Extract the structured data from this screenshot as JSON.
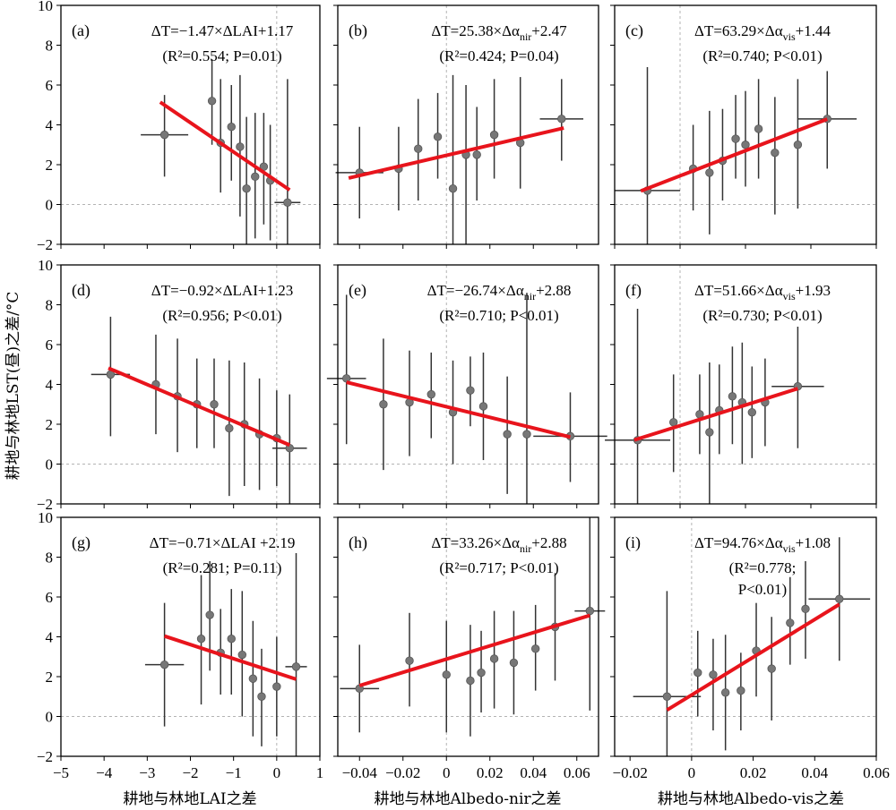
{
  "axes": {
    "ylabel": "耕地与林地LST(昼)之差/°C",
    "xlabels": [
      "耕地与林地LAI之差",
      "耕地与林地Albedo-nir之差",
      "耕地与林地Albedo-vis之差"
    ]
  },
  "chart_data": [
    {
      "type": "scatter",
      "label": "(a)",
      "eq": "ΔT=−1.47×ΔLAI+1.17",
      "eq_stats": "(R²=0.554; P=0.01)",
      "xlim": [
        -5,
        1
      ],
      "ylim": [
        -2,
        10
      ],
      "fit": [
        -2.7,
        0.3
      ],
      "slope": -1.47,
      "intercept": 1.17,
      "points": [
        {
          "x": -2.6,
          "y": 3.5,
          "xerr": 0.55,
          "ylo": 1.4,
          "yhi": 5.5
        },
        {
          "x": -1.5,
          "y": 5.2,
          "xerr": 0,
          "ylo": 3.0,
          "yhi": 7.3
        },
        {
          "x": -1.3,
          "y": 3.1,
          "xerr": 0,
          "ylo": 0.6,
          "yhi": 6.3
        },
        {
          "x": -1.05,
          "y": 3.9,
          "xerr": 0,
          "ylo": 1.2,
          "yhi": 6.0
        },
        {
          "x": -0.85,
          "y": 2.9,
          "xerr": 0,
          "ylo": -0.6,
          "yhi": 6.5
        },
        {
          "x": -0.7,
          "y": 0.8,
          "xerr": 0,
          "ylo": -2.0,
          "yhi": 4.4
        },
        {
          "x": -0.5,
          "y": 1.4,
          "xerr": 0,
          "ylo": -1.7,
          "yhi": 4.6
        },
        {
          "x": -0.3,
          "y": 1.9,
          "xerr": 0,
          "ylo": -1.0,
          "yhi": 4.6
        },
        {
          "x": -0.15,
          "y": 1.2,
          "xerr": 0,
          "ylo": -1.8,
          "yhi": 4.0
        },
        {
          "x": 0.25,
          "y": 0.1,
          "xerr": 0.3,
          "ylo": -2.0,
          "yhi": 6.3
        }
      ]
    },
    {
      "type": "scatter",
      "label": "(b)",
      "eq": "ΔT=25.38×Δα_nir+2.47",
      "eq_stats": "(R²=0.424; P=0.04)",
      "xlim": [
        -0.05,
        0.07
      ],
      "ylim": [
        -2,
        10
      ],
      "fit": [
        -0.045,
        0.054
      ],
      "slope": 25.38,
      "intercept": 2.47,
      "points": [
        {
          "x": -0.04,
          "y": 1.6,
          "xerr": 0.011,
          "ylo": -0.7,
          "yhi": 3.9
        },
        {
          "x": -0.022,
          "y": 1.8,
          "xerr": 0,
          "ylo": -0.3,
          "yhi": 3.9
        },
        {
          "x": -0.013,
          "y": 2.8,
          "xerr": 0,
          "ylo": 0.2,
          "yhi": 5.3
        },
        {
          "x": -0.004,
          "y": 3.4,
          "xerr": 0,
          "ylo": 1.3,
          "yhi": 5.6
        },
        {
          "x": 0.003,
          "y": 0.8,
          "xerr": 0,
          "ylo": -2.0,
          "yhi": 6.5
        },
        {
          "x": 0.009,
          "y": 2.5,
          "xerr": 0,
          "ylo": -2.0,
          "yhi": 6.0
        },
        {
          "x": 0.014,
          "y": 2.5,
          "xerr": 0,
          "ylo": 0.2,
          "yhi": 4.9
        },
        {
          "x": 0.022,
          "y": 3.5,
          "xerr": 0,
          "ylo": 1.3,
          "yhi": 6.3
        },
        {
          "x": 0.034,
          "y": 3.1,
          "xerr": 0,
          "ylo": 0.8,
          "yhi": 6.4
        },
        {
          "x": 0.053,
          "y": 4.3,
          "xerr": 0.01,
          "ylo": 2.2,
          "yhi": 6.3
        }
      ]
    },
    {
      "type": "scatter",
      "label": "(c)",
      "eq": "ΔT=63.29×Δα_vis+1.44",
      "eq_stats": "(R²=0.740; P<0.01)",
      "xlim": [
        -0.02,
        0.06
      ],
      "ylim": [
        -2,
        10
      ],
      "fit": [
        -0.012,
        0.045
      ],
      "slope": 63.29,
      "intercept": 1.44,
      "points": [
        {
          "x": -0.01,
          "y": 0.7,
          "xerr": 0.01,
          "ylo": -2.0,
          "yhi": 6.9
        },
        {
          "x": 0.004,
          "y": 1.8,
          "xerr": 0,
          "ylo": -0.3,
          "yhi": 4.0
        },
        {
          "x": 0.009,
          "y": 1.6,
          "xerr": 0,
          "ylo": -1.5,
          "yhi": 4.7
        },
        {
          "x": 0.013,
          "y": 2.2,
          "xerr": 0,
          "ylo": 0.2,
          "yhi": 4.8
        },
        {
          "x": 0.017,
          "y": 3.3,
          "xerr": 0,
          "ylo": 1.3,
          "yhi": 5.5
        },
        {
          "x": 0.02,
          "y": 3.0,
          "xerr": 0,
          "ylo": 0.9,
          "yhi": 5.7
        },
        {
          "x": 0.024,
          "y": 3.8,
          "xerr": 0,
          "ylo": 1.3,
          "yhi": 6.3
        },
        {
          "x": 0.029,
          "y": 2.6,
          "xerr": 0,
          "ylo": -0.5,
          "yhi": 5.4
        },
        {
          "x": 0.036,
          "y": 3.0,
          "xerr": 0,
          "ylo": -0.2,
          "yhi": 6.3
        },
        {
          "x": 0.045,
          "y": 4.3,
          "xerr": 0.009,
          "ylo": 1.8,
          "yhi": 6.7
        }
      ]
    },
    {
      "type": "scatter",
      "label": "(d)",
      "eq": "ΔT=−0.92×ΔLAI+1.23",
      "eq_stats": "(R²=0.956; P<0.01)",
      "xlim": [
        -5,
        1
      ],
      "ylim": [
        -2,
        10
      ],
      "fit": [
        -3.9,
        0.3
      ],
      "slope": -0.92,
      "intercept": 1.23,
      "points": [
        {
          "x": -3.85,
          "y": 4.5,
          "xerr": 0.45,
          "ylo": 1.4,
          "yhi": 7.4
        },
        {
          "x": -2.8,
          "y": 4.0,
          "xerr": 0,
          "ylo": 1.5,
          "yhi": 6.5
        },
        {
          "x": -2.3,
          "y": 3.4,
          "xerr": 0,
          "ylo": 0.6,
          "yhi": 6.3
        },
        {
          "x": -1.85,
          "y": 3.0,
          "xerr": 0,
          "ylo": 0.8,
          "yhi": 5.3
        },
        {
          "x": -1.45,
          "y": 3.0,
          "xerr": 0,
          "ylo": 0.8,
          "yhi": 5.3
        },
        {
          "x": -1.1,
          "y": 1.8,
          "xerr": 0,
          "ylo": -1.6,
          "yhi": 5.2
        },
        {
          "x": -0.75,
          "y": 2.0,
          "xerr": 0,
          "ylo": -1.1,
          "yhi": 5.1
        },
        {
          "x": -0.4,
          "y": 1.5,
          "xerr": 0,
          "ylo": -1.3,
          "yhi": 4.3
        },
        {
          "x": 0.0,
          "y": 1.3,
          "xerr": 0,
          "ylo": -1.1,
          "yhi": 3.7
        },
        {
          "x": 0.3,
          "y": 0.8,
          "xerr": 0.4,
          "ylo": -2.0,
          "yhi": 3.5
        }
      ]
    },
    {
      "type": "scatter",
      "label": "(e)",
      "eq": "ΔT=−26.74×Δα_nir+2.88",
      "eq_stats": "(R²=0.710; P<0.01)",
      "xlim": [
        -0.05,
        0.07
      ],
      "ylim": [
        -2,
        10
      ],
      "fit": [
        -0.046,
        0.057
      ],
      "slope": -26.74,
      "intercept": 2.88,
      "points": [
        {
          "x": -0.046,
          "y": 4.3,
          "xerr": 0.009,
          "ylo": 1.0,
          "yhi": 8.5
        },
        {
          "x": -0.029,
          "y": 3.0,
          "xerr": 0,
          "ylo": -0.3,
          "yhi": 6.3
        },
        {
          "x": -0.017,
          "y": 3.1,
          "xerr": 0,
          "ylo": 0.4,
          "yhi": 5.7
        },
        {
          "x": -0.007,
          "y": 3.5,
          "xerr": 0,
          "ylo": 1.3,
          "yhi": 5.6
        },
        {
          "x": 0.003,
          "y": 2.6,
          "xerr": 0,
          "ylo": 0.0,
          "yhi": 5.2
        },
        {
          "x": 0.011,
          "y": 3.7,
          "xerr": 0,
          "ylo": 1.9,
          "yhi": 5.4
        },
        {
          "x": 0.017,
          "y": 2.9,
          "xerr": 0,
          "ylo": 0.2,
          "yhi": 5.6
        },
        {
          "x": 0.028,
          "y": 1.5,
          "xerr": 0,
          "ylo": -1.5,
          "yhi": 4.4
        },
        {
          "x": 0.037,
          "y": 1.5,
          "xerr": 0,
          "ylo": -2.0,
          "yhi": 8.6
        },
        {
          "x": 0.057,
          "y": 1.4,
          "xerr": 0.017,
          "ylo": -0.9,
          "yhi": 3.6
        }
      ]
    },
    {
      "type": "scatter",
      "label": "(f)",
      "eq": "ΔT=51.66×Δα_vis+1.93",
      "eq_stats": "(R²=0.730; P<0.01)",
      "xlim": [
        -0.02,
        0.06
      ],
      "ylim": [
        -2,
        10
      ],
      "fit": [
        -0.014,
        0.036
      ],
      "slope": 51.66,
      "intercept": 1.93,
      "points": [
        {
          "x": -0.013,
          "y": 1.2,
          "xerr": 0.01,
          "ylo": -2.0,
          "yhi": 7.8
        },
        {
          "x": -0.002,
          "y": 2.1,
          "xerr": 0,
          "ylo": -0.4,
          "yhi": 4.5
        },
        {
          "x": 0.006,
          "y": 2.5,
          "xerr": 0,
          "ylo": 0.5,
          "yhi": 4.5
        },
        {
          "x": 0.009,
          "y": 1.6,
          "xerr": 0,
          "ylo": -2.0,
          "yhi": 5.1
        },
        {
          "x": 0.012,
          "y": 2.7,
          "xerr": 0,
          "ylo": 0.5,
          "yhi": 5.0
        },
        {
          "x": 0.016,
          "y": 3.4,
          "xerr": 0,
          "ylo": 1.0,
          "yhi": 5.9
        },
        {
          "x": 0.019,
          "y": 3.1,
          "xerr": 0,
          "ylo": 0.0,
          "yhi": 6.1
        },
        {
          "x": 0.022,
          "y": 2.6,
          "xerr": 0,
          "ylo": 0.3,
          "yhi": 4.9
        },
        {
          "x": 0.026,
          "y": 3.1,
          "xerr": 0,
          "ylo": 0.9,
          "yhi": 5.3
        },
        {
          "x": 0.036,
          "y": 3.9,
          "xerr": 0.008,
          "ylo": 0.8,
          "yhi": 6.9
        }
      ]
    },
    {
      "type": "scatter",
      "label": "(g)",
      "eq": "ΔT=−0.71×ΔLAI +2.19",
      "eq_stats": "(R²=0.281; P=0.11)",
      "xlim": [
        -5,
        1
      ],
      "ylim": [
        -2,
        10
      ],
      "fit": [
        -2.6,
        0.45
      ],
      "slope": -0.71,
      "intercept": 2.19,
      "points": [
        {
          "x": -2.6,
          "y": 2.6,
          "xerr": 0.45,
          "ylo": -0.5,
          "yhi": 5.7
        },
        {
          "x": -1.75,
          "y": 3.9,
          "xerr": 0,
          "ylo": 0.6,
          "yhi": 7.1
        },
        {
          "x": -1.55,
          "y": 5.1,
          "xerr": 0,
          "ylo": 2.3,
          "yhi": 7.8
        },
        {
          "x": -1.3,
          "y": 3.2,
          "xerr": 0,
          "ylo": 1.1,
          "yhi": 5.4
        },
        {
          "x": -1.05,
          "y": 3.9,
          "xerr": 0,
          "ylo": 1.1,
          "yhi": 6.4
        },
        {
          "x": -0.8,
          "y": 3.1,
          "xerr": 0,
          "ylo": 0.0,
          "yhi": 6.3
        },
        {
          "x": -0.55,
          "y": 1.9,
          "xerr": 0,
          "ylo": -1.0,
          "yhi": 4.8
        },
        {
          "x": -0.35,
          "y": 1.0,
          "xerr": 0,
          "ylo": -1.5,
          "yhi": 3.4
        },
        {
          "x": 0.0,
          "y": 1.5,
          "xerr": 0,
          "ylo": -1.0,
          "yhi": 4.0
        },
        {
          "x": 0.45,
          "y": 2.5,
          "xerr": 0.25,
          "ylo": -2.0,
          "yhi": 8.2
        }
      ]
    },
    {
      "type": "scatter",
      "label": "(h)",
      "eq": "ΔT=33.26×Δα_nir+2.88",
      "eq_stats": "(R²=0.717; P<0.01)",
      "xlim": [
        -0.05,
        0.07
      ],
      "ylim": [
        -2,
        10
      ],
      "fit": [
        -0.04,
        0.066
      ],
      "slope": 33.26,
      "intercept": 2.88,
      "points": [
        {
          "x": -0.04,
          "y": 1.4,
          "xerr": 0.009,
          "ylo": -0.8,
          "yhi": 3.6
        },
        {
          "x": -0.017,
          "y": 2.8,
          "xerr": 0,
          "ylo": 0.5,
          "yhi": 5.2
        },
        {
          "x": 0.0,
          "y": 2.1,
          "xerr": 0,
          "ylo": -0.8,
          "yhi": 4.8
        },
        {
          "x": 0.011,
          "y": 1.8,
          "xerr": 0,
          "ylo": -1.0,
          "yhi": 4.6
        },
        {
          "x": 0.016,
          "y": 2.2,
          "xerr": 0,
          "ylo": 0.2,
          "yhi": 4.3
        },
        {
          "x": 0.022,
          "y": 2.9,
          "xerr": 0,
          "ylo": 0.4,
          "yhi": 5.3
        },
        {
          "x": 0.031,
          "y": 2.7,
          "xerr": 0,
          "ylo": 0.1,
          "yhi": 5.3
        },
        {
          "x": 0.041,
          "y": 3.4,
          "xerr": 0,
          "ylo": 1.3,
          "yhi": 5.6
        },
        {
          "x": 0.05,
          "y": 4.5,
          "xerr": 0,
          "ylo": 1.8,
          "yhi": 7.2
        },
        {
          "x": 0.066,
          "y": 5.3,
          "xerr": 0.007,
          "ylo": 0.3,
          "yhi": 10.0
        }
      ]
    },
    {
      "type": "scatter",
      "label": "(i)",
      "eq": "ΔT=94.76×Δα_vis+1.08",
      "eq_stats": [
        "(R²=0.778;",
        "P<0.01)"
      ],
      "xlim": [
        -0.025,
        0.06
      ],
      "ylim": [
        -2,
        10
      ],
      "fit": [
        -0.008,
        0.048
      ],
      "slope": 94.76,
      "intercept": 1.08,
      "points": [
        {
          "x": -0.008,
          "y": 1.0,
          "xerr": 0.011,
          "ylo": -2.0,
          "yhi": 6.3
        },
        {
          "x": 0.002,
          "y": 2.2,
          "xerr": 0,
          "ylo": 0.0,
          "yhi": 4.3
        },
        {
          "x": 0.007,
          "y": 2.1,
          "xerr": 0,
          "ylo": -0.7,
          "yhi": 3.9
        },
        {
          "x": 0.011,
          "y": 1.2,
          "xerr": 0,
          "ylo": -1.7,
          "yhi": 4.1
        },
        {
          "x": 0.016,
          "y": 1.3,
          "xerr": 0,
          "ylo": -0.7,
          "yhi": 3.2
        },
        {
          "x": 0.021,
          "y": 3.3,
          "xerr": 0,
          "ylo": 1.0,
          "yhi": 5.7
        },
        {
          "x": 0.026,
          "y": 2.4,
          "xerr": 0,
          "ylo": -0.2,
          "yhi": 5.0
        },
        {
          "x": 0.032,
          "y": 4.7,
          "xerr": 0,
          "ylo": 2.6,
          "yhi": 7.0
        },
        {
          "x": 0.037,
          "y": 5.4,
          "xerr": 0,
          "ylo": 2.9,
          "yhi": 7.8
        },
        {
          "x": 0.048,
          "y": 5.9,
          "xerr": 0.01,
          "ylo": 2.8,
          "yhi": 9.0
        }
      ]
    }
  ]
}
